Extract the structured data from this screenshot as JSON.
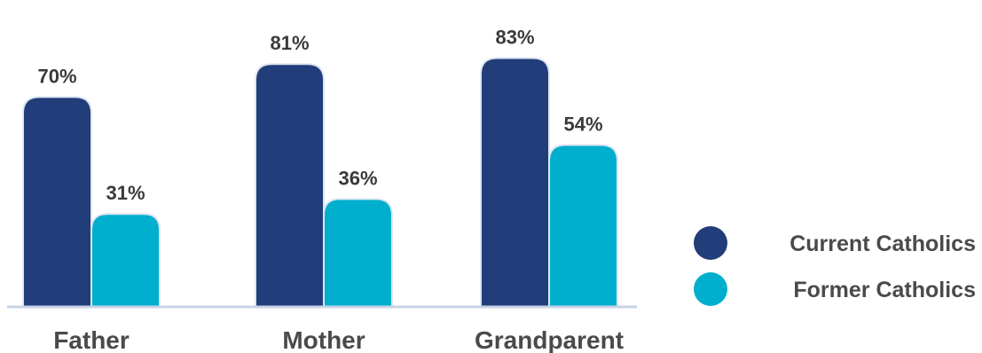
{
  "chart_data": {
    "type": "bar",
    "categories": [
      "Father",
      "Mother",
      "Grandparent"
    ],
    "series": [
      {
        "name": "Current Catholics",
        "values": [
          70,
          81,
          83
        ],
        "labels": [
          "70%",
          "81%",
          "83%"
        ],
        "color": "#213d7a"
      },
      {
        "name": "Former Catholics",
        "values": [
          31,
          36,
          54
        ],
        "labels": [
          "31%",
          "36%",
          "54%"
        ],
        "color": "#00aecd"
      }
    ],
    "ylim": [
      0,
      100
    ],
    "grid": false,
    "legend": "right"
  }
}
